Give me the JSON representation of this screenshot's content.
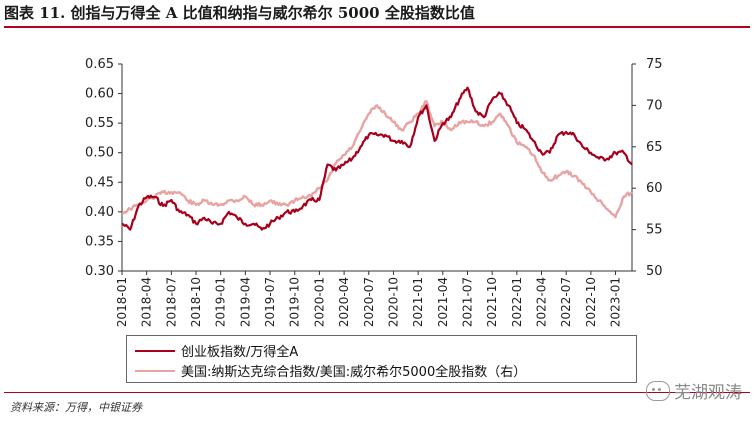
{
  "figure_title": "图表 11.  创指与万得全 A 比值和纳指与威尔希尔 5000 全股指数比值",
  "source_note": "资料来源：万得，中银证券",
  "watermark": "芜湖观涛",
  "colors": {
    "series1": "#a8001c",
    "series2": "#e8a3a3",
    "rule": "#b30021"
  },
  "chart_data": {
    "type": "line",
    "title": "",
    "xlabel": "",
    "ylabel": "",
    "legend_position": "bottom",
    "grid": false,
    "x_ticks": [
      "2018-01",
      "2018-04",
      "2018-07",
      "2018-10",
      "2019-01",
      "2019-04",
      "2019-07",
      "2019-10",
      "2020-01",
      "2020-04",
      "2020-07",
      "2020-10",
      "2021-01",
      "2021-04",
      "2021-07",
      "2021-10",
      "2022-01",
      "2022-04",
      "2022-07",
      "2022-10",
      "2023-01"
    ],
    "y_left": {
      "ticks": [
        "0.30",
        "0.35",
        "0.40",
        "0.45",
        "0.50",
        "0.55",
        "0.60",
        "0.65"
      ],
      "lim": [
        0.3,
        0.65
      ]
    },
    "y_right": {
      "ticks": [
        "50",
        "55",
        "60",
        "65",
        "70",
        "75"
      ],
      "lim": [
        50,
        75
      ]
    },
    "x_range": [
      "2018-01",
      "2023-03"
    ],
    "series": [
      {
        "name": "创业板指数/万得全A",
        "axis": "left",
        "points": [
          [
            "2018-01",
            0.38
          ],
          [
            "2018-02",
            0.37
          ],
          [
            "2018-03",
            0.41
          ],
          [
            "2018-04",
            0.425
          ],
          [
            "2018-05",
            0.425
          ],
          [
            "2018-06",
            0.41
          ],
          [
            "2018-07",
            0.42
          ],
          [
            "2018-08",
            0.4
          ],
          [
            "2018-09",
            0.395
          ],
          [
            "2018-10",
            0.38
          ],
          [
            "2018-11",
            0.39
          ],
          [
            "2018-12",
            0.38
          ],
          [
            "2019-01",
            0.38
          ],
          [
            "2019-02",
            0.4
          ],
          [
            "2019-03",
            0.39
          ],
          [
            "2019-04",
            0.38
          ],
          [
            "2019-05",
            0.38
          ],
          [
            "2019-06",
            0.37
          ],
          [
            "2019-07",
            0.38
          ],
          [
            "2019-08",
            0.39
          ],
          [
            "2019-09",
            0.4
          ],
          [
            "2019-10",
            0.4
          ],
          [
            "2019-11",
            0.41
          ],
          [
            "2019-12",
            0.42
          ],
          [
            "2020-01",
            0.42
          ],
          [
            "2020-02",
            0.48
          ],
          [
            "2020-03",
            0.47
          ],
          [
            "2020-04",
            0.48
          ],
          [
            "2020-05",
            0.49
          ],
          [
            "2020-06",
            0.51
          ],
          [
            "2020-07",
            0.53
          ],
          [
            "2020-08",
            0.53
          ],
          [
            "2020-09",
            0.53
          ],
          [
            "2020-10",
            0.52
          ],
          [
            "2020-11",
            0.52
          ],
          [
            "2020-12",
            0.51
          ],
          [
            "2021-01",
            0.56
          ],
          [
            "2021-02",
            0.58
          ],
          [
            "2021-03",
            0.52
          ],
          [
            "2021-04",
            0.55
          ],
          [
            "2021-05",
            0.56
          ],
          [
            "2021-06",
            0.59
          ],
          [
            "2021-07",
            0.61
          ],
          [
            "2021-08",
            0.57
          ],
          [
            "2021-09",
            0.56
          ],
          [
            "2021-10",
            0.59
          ],
          [
            "2021-11",
            0.6
          ],
          [
            "2021-12",
            0.58
          ],
          [
            "2022-01",
            0.55
          ],
          [
            "2022-02",
            0.54
          ],
          [
            "2022-03",
            0.52
          ],
          [
            "2022-04",
            0.5
          ],
          [
            "2022-05",
            0.5
          ],
          [
            "2022-06",
            0.53
          ],
          [
            "2022-07",
            0.535
          ],
          [
            "2022-08",
            0.53
          ],
          [
            "2022-09",
            0.51
          ],
          [
            "2022-10",
            0.5
          ],
          [
            "2022-11",
            0.49
          ],
          [
            "2022-12",
            0.49
          ],
          [
            "2023-01",
            0.5
          ],
          [
            "2023-02",
            0.5
          ],
          [
            "2023-03",
            0.48
          ]
        ]
      },
      {
        "name": "美国:纳斯达克综合指数/美国:威尔希尔5000全股指数（右）",
        "axis": "right",
        "points": [
          [
            "2018-01",
            57.0
          ],
          [
            "2018-02",
            57.5
          ],
          [
            "2018-03",
            58.0
          ],
          [
            "2018-04",
            58.5
          ],
          [
            "2018-05",
            59.0
          ],
          [
            "2018-06",
            59.5
          ],
          [
            "2018-07",
            59.5
          ],
          [
            "2018-08",
            59.5
          ],
          [
            "2018-09",
            58.5
          ],
          [
            "2018-10",
            58.0
          ],
          [
            "2018-11",
            58.5
          ],
          [
            "2018-12",
            58.0
          ],
          [
            "2019-01",
            58.0
          ],
          [
            "2019-02",
            58.5
          ],
          [
            "2019-03",
            58.5
          ],
          [
            "2019-04",
            59.0
          ],
          [
            "2019-05",
            58.0
          ],
          [
            "2019-06",
            58.0
          ],
          [
            "2019-07",
            58.5
          ],
          [
            "2019-08",
            58.0
          ],
          [
            "2019-09",
            58.0
          ],
          [
            "2019-10",
            58.5
          ],
          [
            "2019-11",
            59.0
          ],
          [
            "2019-12",
            59.0
          ],
          [
            "2020-01",
            60.0
          ],
          [
            "2020-02",
            61.0
          ],
          [
            "2020-03",
            63.0
          ],
          [
            "2020-04",
            64.0
          ],
          [
            "2020-05",
            65.0
          ],
          [
            "2020-06",
            67.0
          ],
          [
            "2020-07",
            69.0
          ],
          [
            "2020-08",
            70.0
          ],
          [
            "2020-09",
            69.0
          ],
          [
            "2020-10",
            68.0
          ],
          [
            "2020-11",
            67.0
          ],
          [
            "2020-12",
            68.0
          ],
          [
            "2021-01",
            69.0
          ],
          [
            "2021-02",
            70.5
          ],
          [
            "2021-03",
            67.5
          ],
          [
            "2021-04",
            68.0
          ],
          [
            "2021-05",
            67.0
          ],
          [
            "2021-06",
            68.0
          ],
          [
            "2021-07",
            68.0
          ],
          [
            "2021-08",
            68.0
          ],
          [
            "2021-09",
            67.5
          ],
          [
            "2021-10",
            68.0
          ],
          [
            "2021-11",
            69.0
          ],
          [
            "2021-12",
            67.5
          ],
          [
            "2022-01",
            65.5
          ],
          [
            "2022-02",
            65.0
          ],
          [
            "2022-03",
            64.0
          ],
          [
            "2022-04",
            62.0
          ],
          [
            "2022-05",
            61.0
          ],
          [
            "2022-06",
            61.5
          ],
          [
            "2022-07",
            62.0
          ],
          [
            "2022-08",
            61.5
          ],
          [
            "2022-09",
            60.5
          ],
          [
            "2022-10",
            59.5
          ],
          [
            "2022-11",
            58.5
          ],
          [
            "2022-12",
            57.5
          ],
          [
            "2023-01",
            56.5
          ],
          [
            "2023-02",
            59.0
          ],
          [
            "2023-03",
            59.5
          ]
        ]
      }
    ]
  }
}
